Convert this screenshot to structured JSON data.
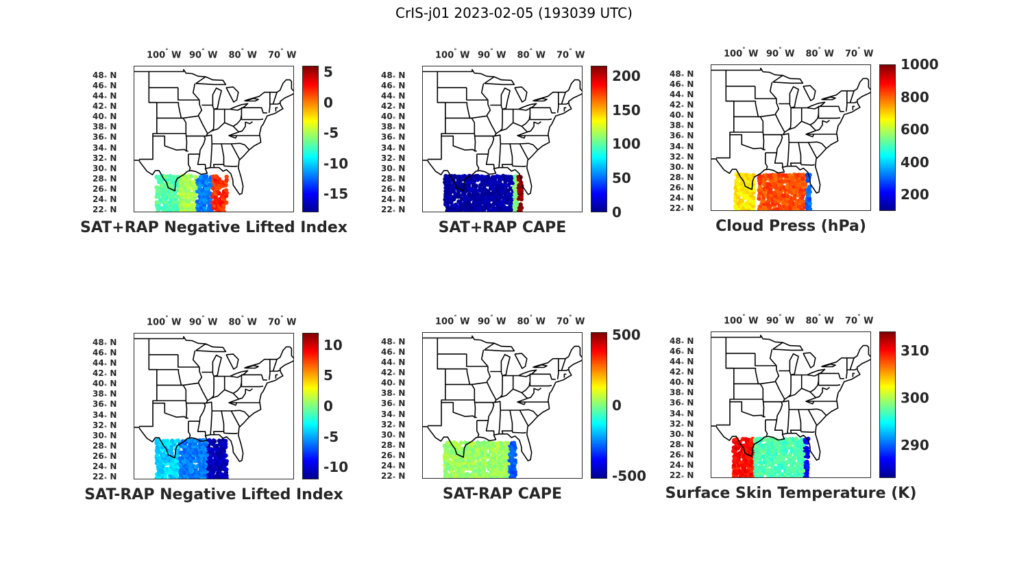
{
  "figure_title": "CrIS-j01 2023-02-05 (193039 UTC)",
  "lon_ticks": [
    {
      "deg": -100,
      "text": "100",
      "hemi": "W"
    },
    {
      "deg": -90,
      "text": "90",
      "hemi": "W"
    },
    {
      "deg": -80,
      "text": "80",
      "hemi": "W"
    },
    {
      "deg": -70,
      "text": "70",
      "hemi": "W"
    }
  ],
  "lat_ticks": [
    {
      "deg": 48,
      "text": "48",
      "hemi": "N"
    },
    {
      "deg": 46,
      "text": "46",
      "hemi": "N"
    },
    {
      "deg": 44,
      "text": "44",
      "hemi": "N"
    },
    {
      "deg": 42,
      "text": "42",
      "hemi": "N"
    },
    {
      "deg": 40,
      "text": "40",
      "hemi": "N"
    },
    {
      "deg": 38,
      "text": "38",
      "hemi": "N"
    },
    {
      "deg": 36,
      "text": "36",
      "hemi": "N"
    },
    {
      "deg": 34,
      "text": "34",
      "hemi": "N"
    },
    {
      "deg": 32,
      "text": "32",
      "hemi": "N"
    },
    {
      "deg": 30,
      "text": "30",
      "hemi": "N"
    },
    {
      "deg": 28,
      "text": "28",
      "hemi": "N"
    },
    {
      "deg": 26,
      "text": "26",
      "hemi": "N"
    },
    {
      "deg": 24,
      "text": "24",
      "hemi": "N"
    },
    {
      "deg": 22,
      "text": "22",
      "hemi": "N"
    }
  ],
  "chart_data": [
    {
      "type": "scatter",
      "title": "SAT+RAP Negative Lifted Index",
      "clim": [
        -18,
        6
      ],
      "colorbar_ticks": [
        5,
        0,
        -5,
        -10,
        -15
      ],
      "swath": {
        "lon": [
          -102,
          -84
        ],
        "lat": [
          21.5,
          28.8
        ]
      },
      "regions": [
        {
          "lon": [
            -102,
            -96
          ],
          "value": -7
        },
        {
          "lon": [
            -96,
            -92
          ],
          "value": -5
        },
        {
          "lon": [
            -92,
            -88
          ],
          "value": -12
        },
        {
          "lon": [
            -88,
            -84
          ],
          "value": 2
        }
      ]
    },
    {
      "type": "scatter",
      "title": "SAT+RAP CAPE",
      "clim": [
        0,
        215
      ],
      "colorbar_ticks": [
        200,
        150,
        100,
        50,
        0
      ],
      "swath": {
        "lon": [
          -102,
          -82.5
        ],
        "lat": [
          21.5,
          28.8
        ]
      },
      "regions": [
        {
          "lon": [
            -102,
            -84.5
          ],
          "value": 5
        },
        {
          "lon": [
            -84.5,
            -83.5
          ],
          "value": 110
        },
        {
          "lon": [
            -83.5,
            -82.5
          ],
          "value": 210
        }
      ]
    },
    {
      "type": "scatter",
      "title": "Cloud Press (hPa)",
      "clim": [
        100,
        1000
      ],
      "colorbar_ticks": [
        1000,
        800,
        600,
        400,
        200
      ],
      "swath": {
        "lon": [
          -101.5,
          -82.5
        ],
        "lat": [
          21.5,
          29.2
        ]
      },
      "regions": [
        {
          "lon": [
            -101.5,
            -97
          ],
          "value": 680
        },
        {
          "lon": [
            -96,
            -83.5
          ],
          "value": 820
        },
        {
          "lon": [
            -83.5,
            -82.5
          ],
          "value": 300
        }
      ]
    },
    {
      "type": "scatter",
      "title": "SAT-RAP Negative Lifted Index",
      "clim": [
        -12,
        12
      ],
      "colorbar_ticks": [
        10,
        5,
        0,
        -5,
        -10
      ],
      "swath": {
        "lon": [
          -102,
          -84
        ],
        "lat": [
          21.5,
          29.5
        ]
      },
      "regions": [
        {
          "lon": [
            -102,
            -96
          ],
          "value": -4
        },
        {
          "lon": [
            -96,
            -89
          ],
          "value": -6
        },
        {
          "lon": [
            -89,
            -84
          ],
          "value": -11
        }
      ]
    },
    {
      "type": "scatter",
      "title": "SAT-RAP CAPE",
      "clim": [
        -520,
        520
      ],
      "colorbar_ticks": [
        500,
        0,
        -500
      ],
      "swath": {
        "lon": [
          -102,
          -84
        ],
        "lat": [
          21.5,
          28.8
        ]
      },
      "regions": [
        {
          "lon": [
            -102,
            -86
          ],
          "value": 30
        },
        {
          "lon": [
            -86,
            -84
          ],
          "value": -300
        }
      ]
    },
    {
      "type": "scatter",
      "title": "Surface Skin Temperature (K)",
      "clim": [
        283,
        314
      ],
      "colorbar_ticks": [
        310,
        300,
        290
      ],
      "swath": {
        "lon": [
          -102,
          -83
        ],
        "lat": [
          21.5,
          29.5
        ]
      },
      "regions": [
        {
          "lon": [
            -102,
            -97
          ],
          "value": 310
        },
        {
          "lon": [
            -97,
            -84
          ],
          "value": 297
        },
        {
          "lon": [
            -84,
            -83
          ],
          "value": 287
        }
      ]
    }
  ]
}
